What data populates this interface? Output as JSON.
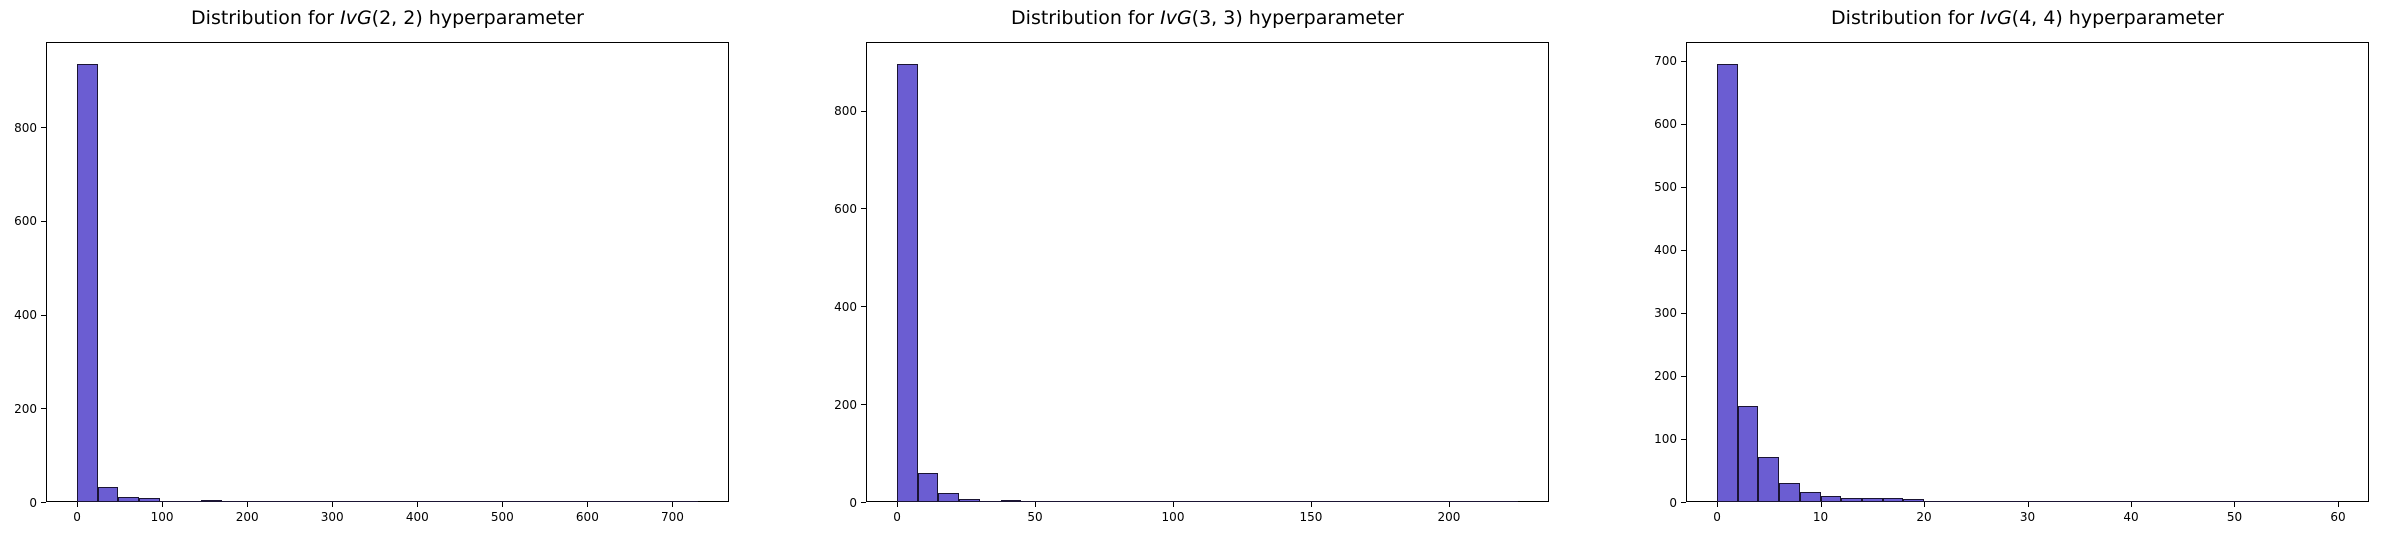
{
  "figure": {
    "background": "#ffffff",
    "description": "Three side-by-side histograms of sampled hyperparameter distributions"
  },
  "style": {
    "bar_fill": "#6b5dd2",
    "bar_edge": "#1a1433",
    "axis_color": "#000000",
    "text_color": "#000000"
  },
  "chart_data": [
    {
      "type": "bar",
      "subtype": "histogram",
      "title_text": "Distribution for IvG(2, 2) hyperparameter",
      "title": {
        "prefix": "Distribution for ",
        "math": "IvG",
        "args": "(2, 2)",
        "suffix": " hyperparameter"
      },
      "xlabel": "",
      "ylabel": "",
      "xlim": [
        -36.5,
        766.5
      ],
      "ylim": [
        0,
        982
      ],
      "x_ticks": [
        0,
        100,
        200,
        300,
        400,
        500,
        600,
        700
      ],
      "y_ticks": [
        0,
        200,
        400,
        600,
        800
      ],
      "grid": false,
      "legend": null,
      "bin_start": 0,
      "bin_width": 24.33,
      "values": [
        935,
        33,
        10,
        8,
        3,
        2,
        5,
        2,
        0,
        0,
        0,
        0,
        0,
        0,
        0,
        0,
        0,
        0,
        0,
        0,
        0,
        3,
        0,
        0,
        0,
        0,
        0,
        0,
        0,
        1
      ]
    },
    {
      "type": "bar",
      "subtype": "histogram",
      "title_text": "Distribution for IvG(3, 3) hyperparameter",
      "title": {
        "prefix": "Distribution for ",
        "math": "IvG",
        "args": "(3, 3)",
        "suffix": " hyperparameter"
      },
      "xlabel": "",
      "ylabel": "",
      "xlim": [
        -11.25,
        236.25
      ],
      "ylim": [
        0,
        940
      ],
      "x_ticks": [
        0,
        50,
        100,
        150,
        200
      ],
      "y_ticks": [
        0,
        200,
        400,
        600,
        800
      ],
      "grid": false,
      "legend": null,
      "bin_start": 0,
      "bin_width": 7.5,
      "values": [
        895,
        60,
        18,
        7,
        0,
        5,
        2,
        0,
        0,
        3,
        0,
        0,
        0,
        0,
        0,
        0,
        0,
        0,
        0,
        0,
        0,
        0,
        0,
        0,
        0,
        0,
        0,
        0,
        0,
        1
      ]
    },
    {
      "type": "bar",
      "subtype": "histogram",
      "title_text": "Distribution for IvG(4, 4) hyperparameter",
      "title": {
        "prefix": "Distribution for ",
        "math": "IvG",
        "args": "(4, 4)",
        "suffix": " hyperparameter"
      },
      "xlabel": "",
      "ylabel": "",
      "xlim": [
        -3,
        63
      ],
      "ylim": [
        0,
        730
      ],
      "x_ticks": [
        0,
        10,
        20,
        30,
        40,
        50,
        60
      ],
      "y_ticks": [
        0,
        100,
        200,
        300,
        400,
        500,
        600,
        700
      ],
      "grid": false,
      "legend": null,
      "bin_start": 0,
      "bin_width": 2,
      "values": [
        695,
        152,
        72,
        30,
        16,
        9,
        6,
        6,
        7,
        5,
        0,
        0,
        0,
        0,
        0,
        0,
        0,
        0,
        0,
        0,
        0,
        0,
        0,
        0,
        0,
        0,
        0,
        0,
        0,
        1
      ]
    }
  ]
}
